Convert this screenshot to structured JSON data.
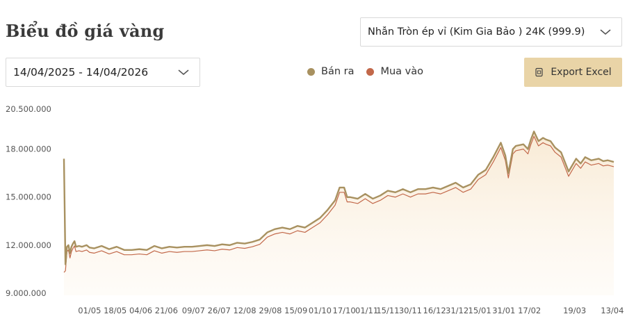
{
  "header": {
    "title": "Biểu đồ giá vàng",
    "product_select": "Nhẫn Tròn ép vỉ (Kim Gia Bảo ) 24K (999.9)",
    "date_range": "14/04/2025 - 14/04/2026",
    "export_label": "Export Excel"
  },
  "legend": [
    {
      "label": "Bán ra",
      "color": "#a89160"
    },
    {
      "label": "Mua vào",
      "color": "#c2684a"
    }
  ],
  "chart_data": {
    "type": "area",
    "ylim": [
      9000000,
      20500000
    ],
    "y_ticks": [
      9000000,
      12000000,
      15000000,
      18000000,
      20500000
    ],
    "y_tick_labels": [
      "9.000.000",
      "12.000.000",
      "15.000.000",
      "18.000.000",
      "20.500.000"
    ],
    "x_ticks": [
      "01/05",
      "18/05",
      "04/06",
      "21/06",
      "09/07",
      "26/07",
      "12/08",
      "29/08",
      "15/09",
      "01/10",
      "17/10",
      "01/11",
      "15/11",
      "30/11",
      "16/12",
      "31/12",
      "15/01",
      "31/01",
      "17/02",
      "19/03",
      "13/04"
    ],
    "x_tick_days": [
      17,
      34,
      51,
      68,
      86,
      103,
      120,
      137,
      154,
      170,
      186,
      201,
      215,
      230,
      246,
      261,
      276,
      292,
      309,
      339,
      364
    ],
    "x_range_days": [
      0,
      365
    ],
    "series": [
      {
        "name": "Bán ra",
        "color": "#a89160",
        "x": [
          0,
          1,
          2,
          3,
          4,
          5,
          6,
          7,
          8,
          10,
          12,
          15,
          17,
          20,
          25,
          30,
          35,
          40,
          45,
          50,
          55,
          60,
          65,
          70,
          75,
          80,
          85,
          90,
          95,
          100,
          105,
          110,
          115,
          120,
          125,
          130,
          135,
          140,
          145,
          150,
          155,
          160,
          165,
          170,
          175,
          180,
          183,
          186,
          188,
          190,
          195,
          200,
          205,
          210,
          215,
          220,
          225,
          230,
          235,
          240,
          245,
          250,
          255,
          260,
          265,
          270,
          275,
          280,
          285,
          290,
          293,
          295,
          298,
          300,
          305,
          308,
          310,
          312,
          315,
          318,
          320,
          323,
          326,
          330,
          335,
          340,
          343,
          346,
          350,
          355,
          358,
          361,
          365
        ],
        "values": [
          17400000,
          10800000,
          11900000,
          12000000,
          11500000,
          11900000,
          12100000,
          12250000,
          11900000,
          11950000,
          11900000,
          12000000,
          11850000,
          11800000,
          11950000,
          11750000,
          11900000,
          11700000,
          11700000,
          11750000,
          11700000,
          11950000,
          11800000,
          11900000,
          11850000,
          11900000,
          11900000,
          11950000,
          12000000,
          11950000,
          12050000,
          12000000,
          12150000,
          12100000,
          12200000,
          12350000,
          12800000,
          13000000,
          13100000,
          13000000,
          13200000,
          13100000,
          13400000,
          13700000,
          14200000,
          14800000,
          15600000,
          15600000,
          15000000,
          15000000,
          14900000,
          15200000,
          14900000,
          15100000,
          15400000,
          15300000,
          15500000,
          15300000,
          15500000,
          15500000,
          15600000,
          15500000,
          15700000,
          15900000,
          15600000,
          15800000,
          16400000,
          16700000,
          17500000,
          18400000,
          17600000,
          16500000,
          18000000,
          18200000,
          18300000,
          18000000,
          18600000,
          19100000,
          18500000,
          18700000,
          18600000,
          18500000,
          18100000,
          17800000,
          16600000,
          17400000,
          17100000,
          17500000,
          17300000,
          17400000,
          17250000,
          17300000,
          17200000
        ]
      },
      {
        "name": "Mua vào",
        "color": "#c2684a",
        "x": [
          0,
          1,
          2,
          3,
          4,
          5,
          6,
          7,
          8,
          10,
          12,
          15,
          17,
          20,
          25,
          30,
          35,
          40,
          45,
          50,
          55,
          60,
          65,
          70,
          75,
          80,
          85,
          90,
          95,
          100,
          105,
          110,
          115,
          120,
          125,
          130,
          135,
          140,
          145,
          150,
          155,
          160,
          165,
          170,
          175,
          180,
          183,
          186,
          188,
          190,
          195,
          200,
          205,
          210,
          215,
          220,
          225,
          230,
          235,
          240,
          245,
          250,
          255,
          260,
          265,
          270,
          275,
          280,
          285,
          290,
          293,
          295,
          298,
          300,
          305,
          308,
          310,
          312,
          315,
          318,
          320,
          323,
          326,
          330,
          335,
          340,
          343,
          346,
          350,
          355,
          358,
          361,
          365
        ],
        "values": [
          10300000,
          10400000,
          11600000,
          11700000,
          11200000,
          11600000,
          11800000,
          11950000,
          11600000,
          11650000,
          11600000,
          11700000,
          11550000,
          11500000,
          11650000,
          11450000,
          11600000,
          11400000,
          11400000,
          11450000,
          11400000,
          11650000,
          11500000,
          11600000,
          11550000,
          11600000,
          11600000,
          11650000,
          11700000,
          11650000,
          11750000,
          11700000,
          11850000,
          11800000,
          11900000,
          12050000,
          12500000,
          12700000,
          12800000,
          12700000,
          12900000,
          12800000,
          13100000,
          13400000,
          13900000,
          14500000,
          15300000,
          15300000,
          14700000,
          14700000,
          14600000,
          14900000,
          14600000,
          14800000,
          15100000,
          15000000,
          15200000,
          15000000,
          15200000,
          15200000,
          15300000,
          15200000,
          15400000,
          15600000,
          15300000,
          15500000,
          16100000,
          16400000,
          17200000,
          18100000,
          17300000,
          16200000,
          17700000,
          17900000,
          18000000,
          17700000,
          18300000,
          18800000,
          18200000,
          18400000,
          18300000,
          18200000,
          17800000,
          17500000,
          16300000,
          17100000,
          16800000,
          17200000,
          17000000,
          17100000,
          16950000,
          17000000,
          16900000
        ]
      }
    ]
  }
}
